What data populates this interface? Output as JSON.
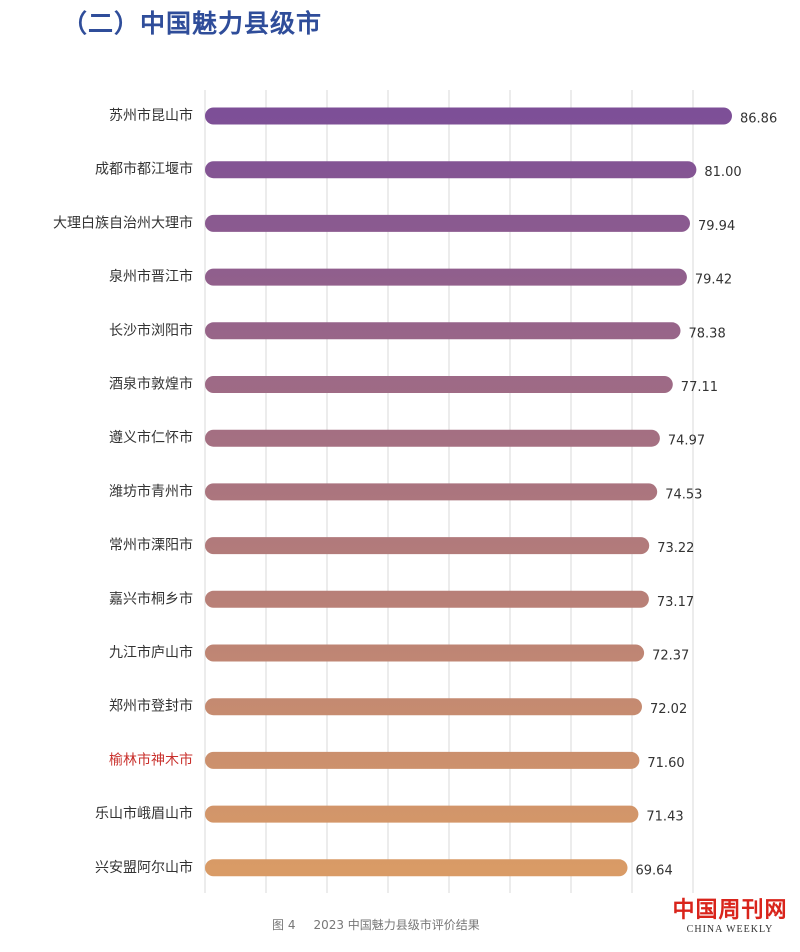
{
  "title": "（二）中国魅力县级市",
  "caption": {
    "figure_number": "图 4",
    "text": "2023 中国魅力县级市评价结果"
  },
  "watermark": {
    "chinese": "中国周刊网",
    "english": "CHINA WEEKLY"
  },
  "colors": {
    "title": "#2f4d9a",
    "bar_start": "#7d4f97",
    "bar_end": "#d99b66",
    "highlight_label": "#c9302c",
    "label": "#333333",
    "value": "#333333",
    "grid": "#d8d8d8"
  },
  "chart_data": {
    "type": "bar",
    "orientation": "horizontal",
    "categories": [
      "苏州市昆山市",
      "成都市都江堰市",
      "大理白族自治州大理市",
      "泉州市晋江市",
      "长沙市浏阳市",
      "酒泉市敦煌市",
      "遵义市仁怀市",
      "潍坊市青州市",
      "常州市溧阳市",
      "嘉兴市桐乡市",
      "九江市庐山市",
      "郑州市登封市",
      "榆林市神木市",
      "乐山市峨眉山市",
      "兴安盟阿尔山市"
    ],
    "values": [
      86.86,
      81.0,
      79.94,
      79.42,
      78.38,
      77.11,
      74.97,
      74.53,
      73.22,
      73.17,
      72.37,
      72.02,
      71.6,
      71.43,
      69.64
    ],
    "value_labels": [
      "86.86",
      "81.00",
      "79.94",
      "79.42",
      "78.38",
      "77.11",
      "74.97",
      "74.53",
      "73.22",
      "73.17",
      "72.37",
      "72.02",
      "71.60",
      "71.43",
      "69.64"
    ],
    "highlight_category": "榆林市神木市",
    "xlim": [
      0,
      86.86
    ],
    "grid": true,
    "legend": "none"
  }
}
